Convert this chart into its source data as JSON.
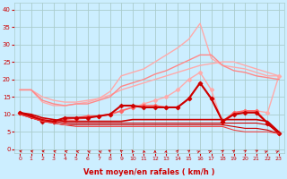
{
  "bg_color": "#cceeff",
  "grid_color": "#aacccc",
  "xlabel": "Vent moyen/en rafales ( km/h )",
  "xlabel_color": "#cc0000",
  "tick_color": "#cc0000",
  "x_ticks": [
    0,
    1,
    2,
    3,
    4,
    5,
    6,
    7,
    8,
    9,
    10,
    11,
    12,
    13,
    14,
    15,
    16,
    17,
    18,
    19,
    20,
    21,
    22,
    23
  ],
  "y_ticks": [
    0,
    5,
    10,
    15,
    20,
    25,
    30,
    35,
    40
  ],
  "ylim": [
    -1,
    42
  ],
  "xlim": [
    -0.5,
    23.5
  ],
  "series": [
    {
      "color": "#ffaaaa",
      "linewidth": 1.0,
      "marker": null,
      "values": [
        17,
        17,
        13.5,
        12.5,
        12.5,
        13,
        13.5,
        14.5,
        16.5,
        21,
        22,
        23,
        25,
        27,
        29,
        31.5,
        36,
        26,
        24,
        23.5,
        23,
        22,
        21,
        21
      ]
    },
    {
      "color": "#ffaaaa",
      "linewidth": 1.0,
      "marker": "D",
      "markersize": 2.5,
      "values": [
        10.5,
        9.5,
        8.5,
        8,
        8,
        8.5,
        9,
        9.5,
        10,
        11,
        12,
        13,
        14,
        15,
        17,
        20,
        22,
        17,
        7.5,
        10.5,
        11,
        11,
        10.5,
        21
      ]
    },
    {
      "color": "#ffaaaa",
      "linewidth": 1.0,
      "marker": null,
      "values": [
        17,
        17,
        15,
        14,
        13.5,
        13.5,
        14,
        14.5,
        15.5,
        17,
        18,
        19,
        20,
        21,
        22,
        23,
        24,
        24.5,
        25,
        25,
        24,
        23,
        22,
        21
      ]
    },
    {
      "color": "#ff8888",
      "linewidth": 1.0,
      "marker": null,
      "values": [
        17,
        17,
        14,
        13,
        12.5,
        13,
        13,
        14,
        15,
        18,
        19,
        20,
        21.5,
        22.5,
        24,
        25.5,
        27,
        27,
        24,
        22.5,
        22,
        21,
        20.5,
        20
      ]
    },
    {
      "color": "#ff6666",
      "linewidth": 1.2,
      "marker": "D",
      "markersize": 2.5,
      "values": [
        10.5,
        9.5,
        8.5,
        8,
        8.5,
        9,
        9.5,
        9.5,
        10,
        11,
        12,
        12.5,
        12.5,
        12,
        12,
        14.5,
        19,
        14.5,
        8,
        10.5,
        11,
        11,
        7.5,
        4.5
      ]
    },
    {
      "color": "#cc0000",
      "linewidth": 1.5,
      "marker": "D",
      "markersize": 2.5,
      "values": [
        10.5,
        9.5,
        8,
        8,
        9,
        9,
        9,
        9.5,
        10,
        12.5,
        12.5,
        12,
        12,
        12,
        12,
        14.5,
        19,
        14.5,
        8,
        10,
        10.5,
        10.5,
        7.5,
        4.5
      ]
    },
    {
      "color": "#cc0000",
      "linewidth": 1.2,
      "marker": null,
      "values": [
        10.5,
        10,
        9,
        8.5,
        8,
        8,
        8,
        8,
        8,
        8,
        8.5,
        8.5,
        8.5,
        8.5,
        8.5,
        8.5,
        8.5,
        8.5,
        8.5,
        8.5,
        8.5,
        8.5,
        8,
        5
      ]
    },
    {
      "color": "#cc0000",
      "linewidth": 0.8,
      "marker": null,
      "values": [
        10,
        9.5,
        8.5,
        8,
        7.5,
        7.5,
        7.5,
        7.5,
        7.5,
        7.5,
        7.5,
        7.5,
        7.5,
        7.5,
        7.5,
        7.5,
        7.5,
        7.5,
        7.5,
        7.5,
        7.5,
        7.5,
        7.0,
        5
      ]
    },
    {
      "color": "#cc0000",
      "linewidth": 0.8,
      "marker": null,
      "values": [
        10,
        9,
        8,
        7.5,
        7,
        7,
        7,
        7,
        7,
        7,
        7,
        7,
        7,
        7,
        7,
        7,
        7,
        7,
        7,
        6.5,
        6,
        6,
        5.5,
        4.5
      ]
    },
    {
      "color": "#ee4444",
      "linewidth": 0.8,
      "marker": null,
      "values": [
        10,
        9,
        8,
        7.5,
        7,
        6.5,
        6.5,
        6.5,
        6.5,
        6.5,
        6.5,
        6.5,
        6.5,
        6.5,
        6.5,
        6.5,
        6.5,
        6.5,
        6.5,
        5.5,
        5,
        5,
        5,
        4.5
      ]
    }
  ],
  "wind_angles": [
    240,
    240,
    240,
    230,
    225,
    220,
    215,
    215,
    210,
    200,
    190,
    185,
    180,
    175,
    165,
    155,
    145,
    140,
    160,
    160,
    155,
    150,
    145,
    145
  ]
}
